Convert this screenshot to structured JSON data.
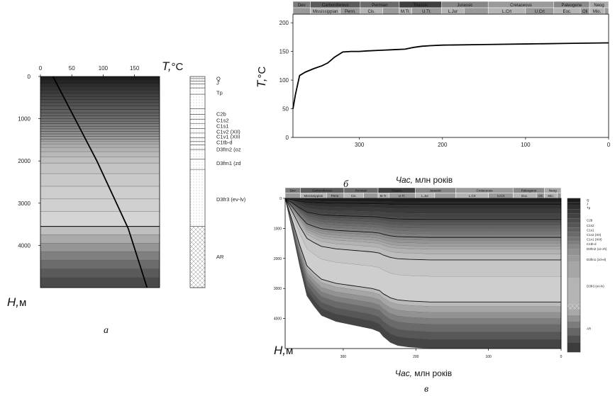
{
  "panel_labels": {
    "a": "а",
    "b": "б",
    "c": "в"
  },
  "chart_data": [
    {
      "id": "a",
      "type": "line",
      "top_axis": {
        "label_symbol": "T,",
        "label_unit": "°C",
        "ticks": [
          0,
          50,
          100,
          150
        ],
        "range": [
          0,
          190
        ]
      },
      "left_axis": {
        "label_symbol": "H,",
        "label_unit": "м",
        "ticks": [
          0,
          1000,
          2000,
          3000,
          4000
        ],
        "range": [
          0,
          5000
        ]
      },
      "line": {
        "x": [
          20,
          55,
          90,
          115,
          140,
          170
        ],
        "y": [
          0,
          1000,
          2000,
          2800,
          3600,
          5000
        ]
      },
      "layer_bottoms": [
        80,
        160,
        240,
        320,
        400,
        480,
        550,
        620,
        700,
        780,
        860,
        930,
        1000,
        1060,
        1120,
        1180,
        1240,
        1300,
        1360,
        1420,
        1480,
        1540,
        1600,
        1680,
        1780,
        1900,
        2050,
        2300,
        2600,
        2900,
        3200,
        3550,
        3750,
        3950,
        4150,
        4350,
        4550,
        4750,
        5000
      ],
      "layer_greys": [
        "#1e1e1e",
        "#252525",
        "#2c2c2c",
        "#333333",
        "#393939",
        "#404040",
        "#464646",
        "#4c4c4c",
        "#525252",
        "#585858",
        "#5e5e5e",
        "#646464",
        "#6a6a6a",
        "#707070",
        "#767676",
        "#7c7c7c",
        "#828282",
        "#888888",
        "#8e8e8e",
        "#949494",
        "#9a9a9a",
        "#a0a0a0",
        "#a6a6a6",
        "#acacac",
        "#b2b2b2",
        "#b8b8b8",
        "#bebebe",
        "#c4c4c4",
        "#c9c9c9",
        "#cdcdcd",
        "#d0d0d0",
        "#d4d4d4",
        "#bfbfbf",
        "#aaaaaa",
        "#959595",
        "#808080",
        "#6c6c6c",
        "#5a5a5a",
        "#4a4a4a"
      ],
      "strat_boundaries": [
        50,
        110,
        180,
        270,
        420,
        760,
        900,
        1010,
        1120,
        1230,
        1340,
        1450,
        1540,
        1620,
        1730,
        1960,
        2200,
        3550,
        5000
      ],
      "strat_labels": [
        {
          "text": "Q",
          "depth": 40
        },
        {
          "text": "J",
          "depth": 140
        },
        {
          "text": "Tp",
          "depth": 380
        },
        {
          "text": "C2b",
          "depth": 880
        },
        {
          "text": "C1s2",
          "depth": 1030
        },
        {
          "text": "C1s1",
          "depth": 1170
        },
        {
          "text": "C1v2 (XII)",
          "depth": 1300
        },
        {
          "text": "C1v1 (XIII",
          "depth": 1420
        },
        {
          "text": "C1tb-d",
          "depth": 1550
        },
        {
          "text": "D3fm2 (oz",
          "depth": 1720
        },
        {
          "text": "D3fm1 (zd",
          "depth": 2050
        },
        {
          "text": "D3fr3 (ev-lv)",
          "depth": 2900
        },
        {
          "text": "AR",
          "depth": 4260
        }
      ]
    },
    {
      "id": "b",
      "type": "line",
      "ylabel_symbol": "T,",
      "ylabel_unit": "°C",
      "xlabel_italic": "Час,",
      "xlabel_rest": " млн років",
      "x_ticks": [
        300,
        200,
        100,
        0
      ],
      "x_range": [
        380,
        0
      ],
      "y_ticks": [
        0,
        50,
        100,
        150,
        200
      ],
      "y_range": [
        0,
        215
      ],
      "line": {
        "x": [
          380,
          377,
          372,
          365,
          355,
          345,
          338,
          330,
          320,
          310,
          300,
          290,
          275,
          260,
          245,
          235,
          225,
          215,
          200,
          150,
          100,
          50,
          0
        ],
        "y": [
          50,
          75,
          108,
          114,
          120,
          125,
          130,
          140,
          149,
          150,
          150,
          151,
          152,
          153,
          154,
          157,
          159,
          160,
          161,
          162,
          163,
          164,
          165
        ]
      },
      "periods": [
        {
          "name": "Dev",
          "start": 380,
          "end": 359
        },
        {
          "name": "Carboniferous",
          "start": 359,
          "end": 299
        },
        {
          "name": "Permian",
          "start": 299,
          "end": 252
        },
        {
          "name": "Triassic",
          "start": 252,
          "end": 201
        },
        {
          "name": "Jurassic",
          "start": 201,
          "end": 145
        },
        {
          "name": "Cretaceous",
          "start": 145,
          "end": 66
        },
        {
          "name": "Paleogene",
          "start": 66,
          "end": 23
        },
        {
          "name": "Neog",
          "start": 23,
          "end": 0
        }
      ],
      "epochs": [
        {
          "name": "",
          "start": 380,
          "end": 359
        },
        {
          "name": "Mississippian",
          "start": 359,
          "end": 323
        },
        {
          "name": "Penn.",
          "start": 323,
          "end": 299
        },
        {
          "name": "Cis.",
          "start": 299,
          "end": 272
        },
        {
          "name": "",
          "start": 272,
          "end": 252
        },
        {
          "name": "M.Tr.",
          "start": 252,
          "end": 237
        },
        {
          "name": "U.Tr.",
          "start": 237,
          "end": 201
        },
        {
          "name": "L.Jur",
          "start": 201,
          "end": 174
        },
        {
          "name": "",
          "start": 174,
          "end": 145
        },
        {
          "name": "L.Crt",
          "start": 145,
          "end": 100
        },
        {
          "name": "U.Crt",
          "start": 100,
          "end": 66
        },
        {
          "name": "Eoc.",
          "start": 66,
          "end": 34
        },
        {
          "name": "Oli",
          "start": 34,
          "end": 23
        },
        {
          "name": "Mio.",
          "start": 23,
          "end": 5
        },
        {
          "name": "",
          "start": 5,
          "end": 0
        }
      ]
    },
    {
      "id": "c",
      "type": "area",
      "xlabel_italic": "Час,",
      "xlabel_rest": " млн років",
      "ylabel_symbol": "H,",
      "ylabel_unit": "м",
      "x_ticks": [
        300,
        200,
        100,
        0
      ],
      "x_range": [
        380,
        0
      ],
      "y_ticks": [
        0,
        1000,
        2000,
        3000,
        4000
      ],
      "y_range": [
        0,
        5000
      ],
      "burial_profile": {
        "t": [
          380,
          370,
          360,
          350,
          340,
          330,
          320,
          310,
          300,
          290,
          280,
          270,
          260,
          250,
          245,
          235,
          225,
          210,
          180,
          150,
          100,
          50,
          0
        ],
        "f": [
          0.0,
          0.22,
          0.45,
          0.65,
          0.72,
          0.78,
          0.8,
          0.82,
          0.83,
          0.84,
          0.85,
          0.86,
          0.87,
          0.89,
          0.92,
          0.96,
          0.98,
          0.99,
          1.0,
          1.0,
          1.0,
          1.0,
          1.0
        ]
      },
      "layer_bottoms_present": [
        120,
        220,
        350,
        500,
        650,
        800,
        900,
        1000,
        1100,
        1200,
        1300,
        1400,
        1500,
        1600,
        1700,
        1850,
        2050,
        2600,
        3450,
        3600,
        3800,
        4000,
        4200,
        4450,
        4700,
        5000
      ],
      "layer_greys": [
        "#1c1c1c",
        "#262626",
        "#303030",
        "#3a3a3a",
        "#444444",
        "#4e4e4e",
        "#585858",
        "#626262",
        "#6c6c6c",
        "#767676",
        "#808080",
        "#8a8a8a",
        "#949494",
        "#9e9e9e",
        "#a8a8a8",
        "#b2b2b2",
        "#bcbcbc",
        "#c6c6c6",
        "#cecece",
        "#bababa",
        "#a6a6a6",
        "#929292",
        "#7e7e7e",
        "#6a6a6a",
        "#575757",
        "#454545"
      ],
      "isotherm_depths": [
        200,
        700,
        1300,
        2050,
        3450
      ],
      "periods": [
        {
          "name": "Dev",
          "start": 380,
          "end": 359
        },
        {
          "name": "Carboniferous",
          "start": 359,
          "end": 299
        },
        {
          "name": "Permian",
          "start": 299,
          "end": 252
        },
        {
          "name": "Triassic",
          "start": 252,
          "end": 201
        },
        {
          "name": "Jurassic",
          "start": 201,
          "end": 145
        },
        {
          "name": "Cretaceous",
          "start": 145,
          "end": 66
        },
        {
          "name": "Paleogene",
          "start": 66,
          "end": 23
        },
        {
          "name": "Neog",
          "start": 23,
          "end": 0
        }
      ],
      "epochs": [
        {
          "name": "",
          "start": 380,
          "end": 359
        },
        {
          "name": "Mississippian",
          "start": 359,
          "end": 323
        },
        {
          "name": "Penn.",
          "start": 323,
          "end": 299
        },
        {
          "name": "Cis.",
          "start": 299,
          "end": 272
        },
        {
          "name": "",
          "start": 272,
          "end": 252
        },
        {
          "name": "M.Tr.",
          "start": 252,
          "end": 237
        },
        {
          "name": "U.Tr.",
          "start": 237,
          "end": 201
        },
        {
          "name": "L.Jur",
          "start": 201,
          "end": 174
        },
        {
          "name": "",
          "start": 174,
          "end": 145
        },
        {
          "name": "L.Crt",
          "start": 145,
          "end": 100
        },
        {
          "name": "U.Crt",
          "start": 100,
          "end": 66
        },
        {
          "name": "Eoc.",
          "start": 66,
          "end": 34
        },
        {
          "name": "Oli",
          "start": 34,
          "end": 23
        },
        {
          "name": "Mio.",
          "start": 23,
          "end": 5
        },
        {
          "name": "",
          "start": 5,
          "end": 0
        }
      ],
      "legend_boundaries": [
        0,
        120,
        220,
        350,
        500,
        650,
        800,
        950,
        1100,
        1250,
        1400,
        1500,
        1650,
        1850,
        2050,
        2600,
        3450,
        3600,
        3800,
        4000,
        4200,
        4450,
        4700,
        5000
      ],
      "legend_greys": [
        "#1a1a1a",
        "#242424",
        "#2e2e2e",
        "#383838",
        "#424242",
        "#4c4c4c",
        "#565656",
        "#606060",
        "#6a6a6a",
        "#747474",
        "#7e7e7e",
        "#888888",
        "#929292",
        "#9c9c9c",
        "#a6a6a6",
        "#b4b4b4",
        "#c2c2c2",
        "#a8a8a8",
        "#929292",
        "#7c7c7c",
        "#666666",
        "#505050",
        "#3c3c3c"
      ],
      "legend_labels": [
        {
          "text": "Q",
          "depth": 50
        },
        {
          "text": "J",
          "depth": 170
        },
        {
          "text": "Tp",
          "depth": 300
        },
        {
          "text": "C2b",
          "depth": 700
        },
        {
          "text": "C1s2",
          "depth": 870
        },
        {
          "text": "C1s1",
          "depth": 1020
        },
        {
          "text": "C1v2 (XII)",
          "depth": 1180
        },
        {
          "text": "C1v1 (XIII)",
          "depth": 1330
        },
        {
          "text": "C1tb-d",
          "depth": 1480
        },
        {
          "text": "D3fm2 (oz-zh)",
          "depth": 1640
        },
        {
          "text": "D3fm1 (zd-el)",
          "depth": 1980
        },
        {
          "text": "D3fr3 (ev-lv)",
          "depth": 2850
        },
        {
          "text": "AR",
          "depth": 4230
        }
      ]
    }
  ]
}
